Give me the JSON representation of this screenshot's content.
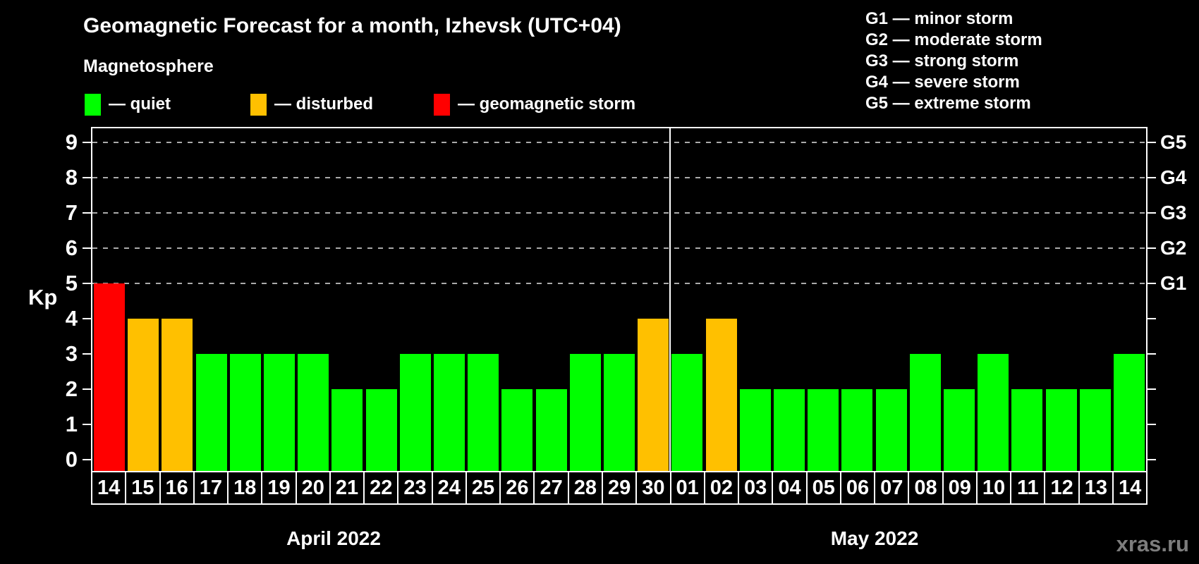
{
  "title": "Geomagnetic Forecast for a month, Izhevsk (UTC+04)",
  "subtitle": "Magnetosphere",
  "status_legend": {
    "items": [
      {
        "name": "quiet",
        "label": "— quiet",
        "color": "#00ff00"
      },
      {
        "name": "disturbed",
        "label": "— disturbed",
        "color": "#ffc000"
      },
      {
        "name": "storm",
        "label": "— geomagnetic storm",
        "color": "#ff0000"
      }
    ]
  },
  "g_scale_legend": [
    "G1 — minor storm",
    "G2 — moderate storm",
    "G3 — strong storm",
    "G4 — severe storm",
    "G5 — extreme storm"
  ],
  "kp_axis_label": "Kp",
  "watermark": "xras.ru",
  "chart_data": {
    "type": "bar",
    "title": "Geomagnetic Forecast for a month, Izhevsk (UTC+04)",
    "ylabel": "Kp",
    "ylim": [
      0,
      9
    ],
    "yticks": [
      0,
      1,
      2,
      3,
      4,
      5,
      6,
      7,
      8,
      9
    ],
    "right_axis_labels": [
      {
        "value": 5,
        "label": "G1"
      },
      {
        "value": 6,
        "label": "G2"
      },
      {
        "value": 7,
        "label": "G3"
      },
      {
        "value": 8,
        "label": "G4"
      },
      {
        "value": 9,
        "label": "G5"
      }
    ],
    "gridlines_at": [
      5,
      6,
      7,
      8,
      9
    ],
    "legend_position": "top",
    "colors": {
      "quiet": "#00ff00",
      "disturbed": "#ffc000",
      "storm": "#ff0000"
    },
    "months": [
      {
        "label": "April 2022",
        "days_shown": 17
      },
      {
        "label": "May 2022",
        "days_shown": 14
      }
    ],
    "bars": [
      {
        "day": "14",
        "month": "April 2022",
        "value": 5,
        "status": "storm"
      },
      {
        "day": "15",
        "month": "April 2022",
        "value": 4,
        "status": "disturbed"
      },
      {
        "day": "16",
        "month": "April 2022",
        "value": 4,
        "status": "disturbed"
      },
      {
        "day": "17",
        "month": "April 2022",
        "value": 3,
        "status": "quiet"
      },
      {
        "day": "18",
        "month": "April 2022",
        "value": 3,
        "status": "quiet"
      },
      {
        "day": "19",
        "month": "April 2022",
        "value": 3,
        "status": "quiet"
      },
      {
        "day": "20",
        "month": "April 2022",
        "value": 3,
        "status": "quiet"
      },
      {
        "day": "21",
        "month": "April 2022",
        "value": 2,
        "status": "quiet"
      },
      {
        "day": "22",
        "month": "April 2022",
        "value": 2,
        "status": "quiet"
      },
      {
        "day": "23",
        "month": "April 2022",
        "value": 3,
        "status": "quiet"
      },
      {
        "day": "24",
        "month": "April 2022",
        "value": 3,
        "status": "quiet"
      },
      {
        "day": "25",
        "month": "April 2022",
        "value": 3,
        "status": "quiet"
      },
      {
        "day": "26",
        "month": "April 2022",
        "value": 2,
        "status": "quiet"
      },
      {
        "day": "27",
        "month": "April 2022",
        "value": 2,
        "status": "quiet"
      },
      {
        "day": "28",
        "month": "April 2022",
        "value": 3,
        "status": "quiet"
      },
      {
        "day": "29",
        "month": "April 2022",
        "value": 3,
        "status": "quiet"
      },
      {
        "day": "30",
        "month": "April 2022",
        "value": 4,
        "status": "disturbed"
      },
      {
        "day": "01",
        "month": "May 2022",
        "value": 3,
        "status": "quiet"
      },
      {
        "day": "02",
        "month": "May 2022",
        "value": 4,
        "status": "disturbed"
      },
      {
        "day": "03",
        "month": "May 2022",
        "value": 2,
        "status": "quiet"
      },
      {
        "day": "04",
        "month": "May 2022",
        "value": 2,
        "status": "quiet"
      },
      {
        "day": "05",
        "month": "May 2022",
        "value": 2,
        "status": "quiet"
      },
      {
        "day": "06",
        "month": "May 2022",
        "value": 2,
        "status": "quiet"
      },
      {
        "day": "07",
        "month": "May 2022",
        "value": 2,
        "status": "quiet"
      },
      {
        "day": "08",
        "month": "May 2022",
        "value": 3,
        "status": "quiet"
      },
      {
        "day": "09",
        "month": "May 2022",
        "value": 2,
        "status": "quiet"
      },
      {
        "day": "10",
        "month": "May 2022",
        "value": 3,
        "status": "quiet"
      },
      {
        "day": "11",
        "month": "May 2022",
        "value": 2,
        "status": "quiet"
      },
      {
        "day": "12",
        "month": "May 2022",
        "value": 2,
        "status": "quiet"
      },
      {
        "day": "13",
        "month": "May 2022",
        "value": 2,
        "status": "quiet"
      },
      {
        "day": "14",
        "month": "May 2022",
        "value": 3,
        "status": "quiet"
      }
    ]
  }
}
